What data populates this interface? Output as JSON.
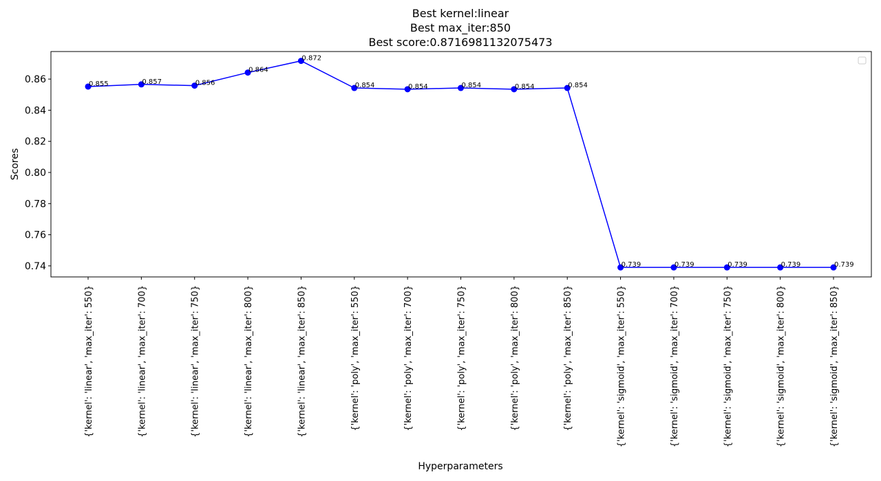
{
  "chart_data": {
    "type": "line",
    "title_lines": [
      "Best kernel:linear",
      "Best max_iter:850",
      "Best score:0.8716981132075473"
    ],
    "xlabel": "Hyperparameters",
    "ylabel": "Scores",
    "categories": [
      "{'kernel': 'linear', 'max_iter': 550}",
      "{'kernel': 'linear', 'max_iter': 700}",
      "{'kernel': 'linear', 'max_iter': 750}",
      "{'kernel': 'linear', 'max_iter': 800}",
      "{'kernel': 'linear', 'max_iter': 850}",
      "{'kernel': 'poly', 'max_iter': 550}",
      "{'kernel': 'poly', 'max_iter': 700}",
      "{'kernel': 'poly', 'max_iter': 750}",
      "{'kernel': 'poly', 'max_iter': 800}",
      "{'kernel': 'poly', 'max_iter': 850}",
      "{'kernel': 'sigmoid', 'max_iter': 550}",
      "{'kernel': 'sigmoid', 'max_iter': 700}",
      "{'kernel': 'sigmoid', 'max_iter': 750}",
      "{'kernel': 'sigmoid', 'max_iter': 800}",
      "{'kernel': 'sigmoid', 'max_iter': 850}"
    ],
    "values": [
      0.8552,
      0.8566,
      0.8558,
      0.8642,
      0.8717,
      0.8543,
      0.8535,
      0.8543,
      0.8535,
      0.8543,
      0.739,
      0.739,
      0.739,
      0.739,
      0.739
    ],
    "data_labels": [
      "0.855",
      "0.857",
      "0.856",
      "0.864",
      "0.872",
      "0.854",
      "0.854",
      "0.854",
      "0.854",
      "0.854",
      "0.739",
      "0.739",
      "0.739",
      "0.739",
      "0.739"
    ],
    "yticks": [
      0.74,
      0.76,
      0.78,
      0.8,
      0.82,
      0.84,
      0.86
    ],
    "ytick_labels": [
      "0.74",
      "0.76",
      "0.78",
      "0.80",
      "0.82",
      "0.84",
      "0.86"
    ],
    "ylim": [
      0.7329,
      0.8777
    ],
    "line_color": "#0000ff",
    "marker_color": "#0000ff",
    "grid": false,
    "legend": {
      "placement": "top-right",
      "entries": []
    }
  }
}
